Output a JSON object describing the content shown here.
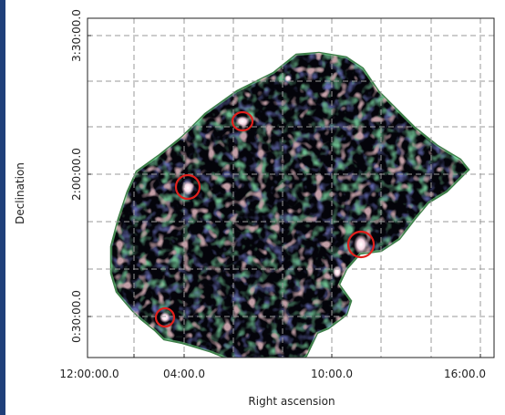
{
  "figure": {
    "ylabel": "Declination",
    "xlabel": "Right ascension",
    "x_ticks": [
      "12:00:00.0",
      "04:00.0",
      "10:00.0",
      "16:00.0"
    ],
    "y_ticks": [
      "3:30:00.0",
      "2:00:00.0",
      "0:30:00.0"
    ],
    "colors": {
      "background": "#ffffff",
      "map_field": "#04040a",
      "grid": "#9a9a9a",
      "circle": "#e0201c",
      "stripe": "#1f3f7a"
    }
  }
}
